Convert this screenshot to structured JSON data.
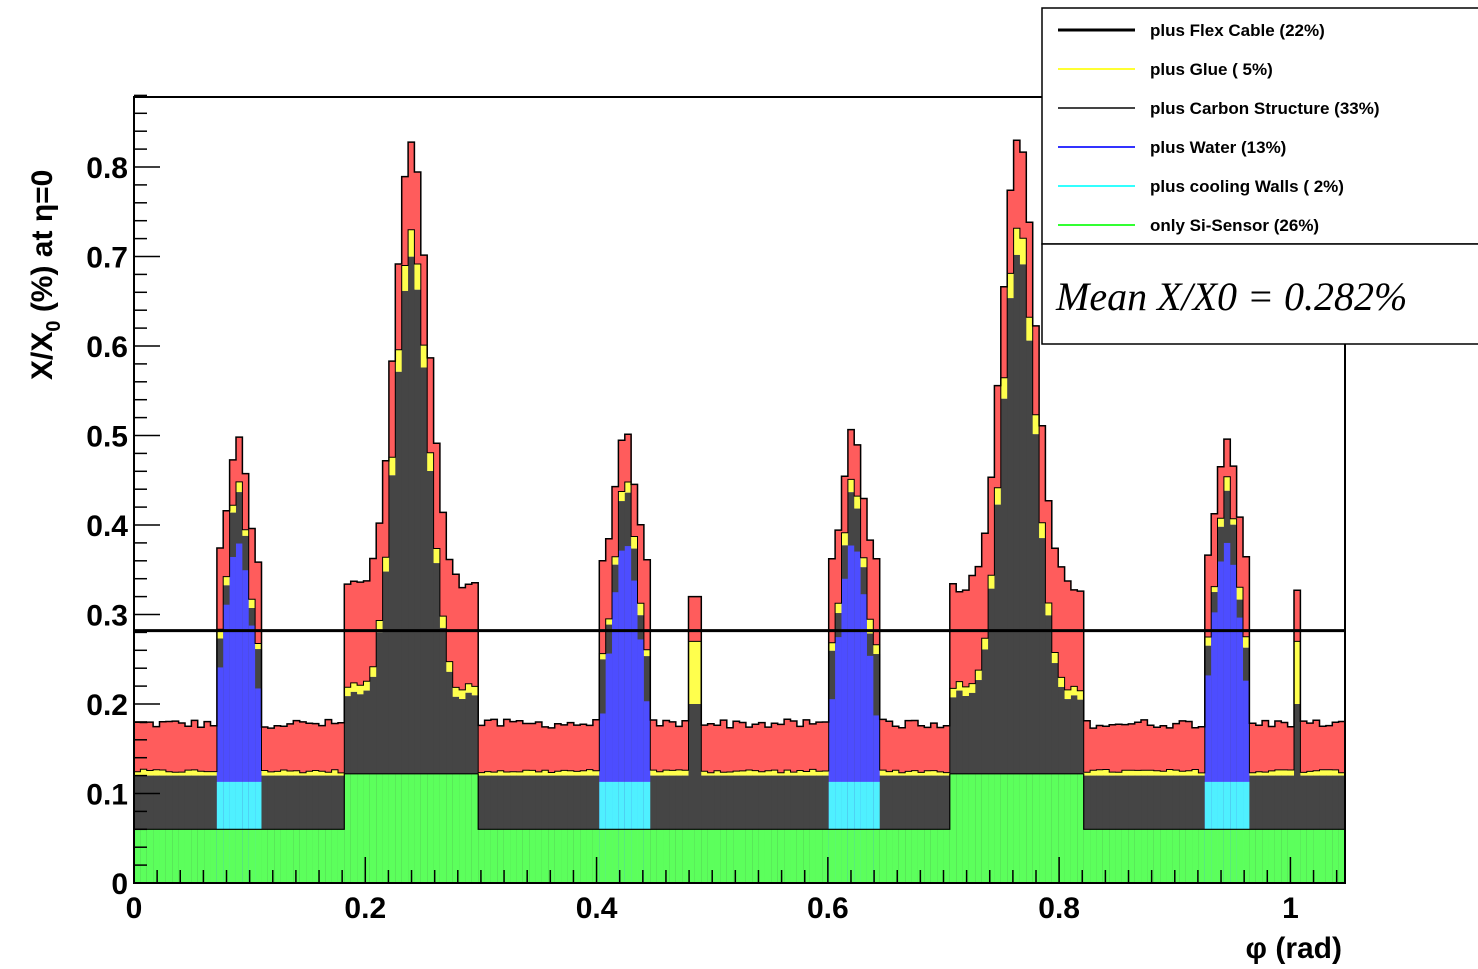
{
  "chart_data": {
    "type": "area",
    "stacked": true,
    "x_label": "φ (rad)",
    "y_label": "X/X",
    "y_label_sub": "0",
    "y_label_suffix": " (%) at η=0",
    "xlim": [
      0,
      1.0472
    ],
    "ylim": [
      0,
      0.88
    ],
    "x_ticks": [
      0,
      0.2,
      0.4,
      0.6,
      0.8,
      1
    ],
    "x_tick_labels": [
      "0",
      "0.2",
      "0.4",
      "0.6",
      "0.8",
      "1"
    ],
    "y_ticks": [
      0,
      0.1,
      0.2,
      0.3,
      0.4,
      0.5,
      0.6,
      0.7,
      0.8
    ],
    "y_tick_labels": [
      "0",
      "0.1",
      "0.2",
      "0.3",
      "0.4",
      "0.5",
      "0.6",
      "0.7",
      "0.8"
    ],
    "grid": false,
    "mean_line": 0.282,
    "mean_label": "Mean X/X0 = 0.282%",
    "legend_position": "top-right",
    "legend": [
      {
        "label": "plus Flex Cable (22%)",
        "color": "#000000"
      },
      {
        "label": "plus Glue ( 5%)",
        "color": "#ffff33"
      },
      {
        "label": "plus Carbon Structure (33%)",
        "color": "#444444"
      },
      {
        "label": "plus Water (13%)",
        "color": "#3333ff"
      },
      {
        "label": "plus cooling Walls ( 2%)",
        "color": "#33ffff"
      },
      {
        "label": "only Si-Sensor (26%)",
        "color": "#33ff33"
      }
    ],
    "layer_colors": {
      "si_sensor": "#5cff5c",
      "cooling_walls": "#4ff0ff",
      "water": "#4d4dff",
      "carbon": "#454545",
      "glue": "#ffff4d",
      "flex": "#ff5c5c"
    },
    "baseline": {
      "si_sensor": 0.06,
      "si_sensor_wide_peak": 0.122,
      "carbon_top": 0.12,
      "glue_top": 0.125,
      "flex_top": 0.178
    },
    "narrow_peaks": [
      {
        "center": 0.09,
        "half_width": 0.021,
        "carbon_top": 0.44,
        "glue_top": 0.445,
        "flex_top": 0.495,
        "water_top": 0.38,
        "water_bottom": 0.085,
        "wall_top": 0.113
      },
      {
        "center": 0.425,
        "half_width": 0.021,
        "carbon_top": 0.44,
        "glue_top": 0.445,
        "flex_top": 0.505,
        "water_top": 0.38,
        "water_bottom": 0.085,
        "wall_top": 0.113
      },
      {
        "center": 0.622,
        "half_width": 0.021,
        "carbon_top": 0.44,
        "glue_top": 0.45,
        "flex_top": 0.505,
        "water_top": 0.38,
        "water_bottom": 0.085,
        "wall_top": 0.113
      },
      {
        "center": 0.945,
        "half_width": 0.021,
        "carbon_top": 0.44,
        "glue_top": 0.445,
        "flex_top": 0.495,
        "water_top": 0.38,
        "water_bottom": 0.085,
        "wall_top": 0.113
      }
    ],
    "wide_peaks": [
      {
        "center": 0.24,
        "half_width": 0.045,
        "carbon_top": 0.7,
        "glue_top": 0.72,
        "flex_top": 0.826
      },
      {
        "center": 0.765,
        "half_width": 0.045,
        "carbon_top": 0.71,
        "glue_top": 0.735,
        "flex_top": 0.835
      }
    ],
    "spikes": [
      {
        "center": 0.483,
        "carbon_top": 0.2,
        "glue_top": 0.27,
        "flex_top": 0.32
      },
      {
        "center": 1.006,
        "carbon_top": 0.2,
        "glue_top": 0.27,
        "flex_top": 0.327
      }
    ]
  }
}
